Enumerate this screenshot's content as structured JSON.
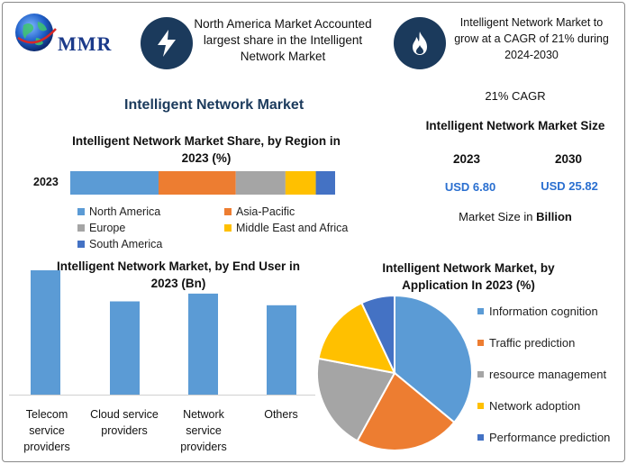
{
  "brand": {
    "logo_text": "MMR"
  },
  "highlights": [
    {
      "icon": "lightning-bolt-icon",
      "text": "North America Market Accounted largest share in the Intelligent Network Market"
    },
    {
      "icon": "flame-icon",
      "text": "Intelligent Network Market to grow at a CAGR of 21% during 2024-2030"
    }
  ],
  "main_title": "Intelligent Network Market",
  "stats": {
    "cagr": "21% CAGR",
    "size_title": "Intelligent Network Market Size",
    "year_a": "2023",
    "year_b": "2030",
    "value_a": "USD 6.80",
    "value_b": "USD 25.82",
    "note_prefix": "Market Size in ",
    "note_unit": "Billion"
  },
  "colors": {
    "blue": "#5b9bd5",
    "orange": "#ed7d31",
    "gray": "#a5a5a5",
    "yellow": "#ffc000",
    "dark_blue": "#4472c4",
    "navy": "#1b3a5c"
  },
  "chart_data": [
    {
      "type": "bar",
      "orientation": "horizontal-stacked",
      "title": "Intelligent Network Market Share, by Region in 2023 (%)",
      "categories": [
        "2023"
      ],
      "series": [
        {
          "name": "North America",
          "values": [
            32
          ],
          "color": "#5b9bd5"
        },
        {
          "name": "Asia-Pacific",
          "values": [
            28
          ],
          "color": "#ed7d31"
        },
        {
          "name": "Europe",
          "values": [
            18
          ],
          "color": "#a5a5a5"
        },
        {
          "name": "Middle East and Africa",
          "values": [
            11
          ],
          "color": "#ffc000"
        },
        {
          "name": "South America",
          "values": [
            7
          ],
          "color": "#4472c4"
        }
      ],
      "legend": "bottom"
    },
    {
      "type": "bar",
      "title": "Intelligent Network Market, by End User in 2023 (Bn)",
      "categories": [
        "Telecom service providers",
        "Cloud service providers",
        "Network service providers",
        "Others"
      ],
      "values": [
        3.2,
        2.4,
        2.6,
        2.3
      ],
      "color": "#5b9bd5",
      "ylim": [
        0,
        3.2
      ]
    },
    {
      "type": "pie",
      "title": "Intelligent Network Market, by Application In 2023 (%)",
      "categories": [
        "Information cognition",
        "Traffic prediction",
        "resource management",
        "Network adoption",
        "Performance prediction"
      ],
      "values": [
        36,
        22,
        20,
        15,
        7
      ],
      "colors": [
        "#5b9bd5",
        "#ed7d31",
        "#a5a5a5",
        "#ffc000",
        "#4472c4"
      ],
      "legend": "right"
    }
  ]
}
